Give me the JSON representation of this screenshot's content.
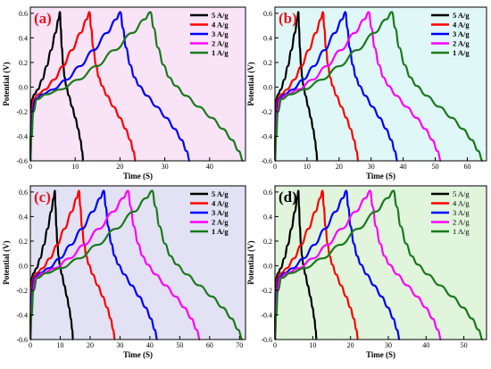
{
  "chart_data": [
    {
      "type": "line",
      "panel_label": "(a)",
      "background": "#f8e4f6",
      "label_color": "#e8141c",
      "title": "",
      "xlabel": "Time (S)",
      "ylabel": "Potential (V)",
      "xlim": [
        0,
        48
      ],
      "ylim": [
        -0.6,
        0.65
      ],
      "xticks": [
        "0",
        "10",
        "20",
        "30",
        "40"
      ],
      "yticks": [
        "-0.6",
        "-0.4",
        "-0.2",
        "0.0",
        "0.2",
        "0.4",
        "0.6"
      ],
      "grid": false,
      "legend_position": "top-right",
      "series": [
        {
          "name": "5 A/g",
          "color": "#000000",
          "charge_end": 6.6,
          "discharge_end": 11.8
        },
        {
          "name": "4 A/g",
          "color": "#ff0000",
          "charge_end": 13.2,
          "discharge_end": 23.5
        },
        {
          "name": "3 A/g",
          "color": "#0000ff",
          "charge_end": 20.1,
          "discharge_end": 35.6
        },
        {
          "name": "2 A/g",
          "color": "#ff00ff",
          "charge_end": 0,
          "discharge_end": 0
        },
        {
          "name": "1 A/g",
          "color": "#1a7a1a",
          "charge_end": 26.8,
          "discharge_end": 47.5
        }
      ]
    },
    {
      "type": "line",
      "panel_label": "(b)",
      "background": "#e0f7f7",
      "label_color": "#e8141c",
      "title": "",
      "xlabel": "Time (S)",
      "ylabel": "Potential (V)",
      "xlim": [
        0,
        66
      ],
      "ylim": [
        -0.6,
        0.65
      ],
      "xticks": [
        "0",
        "10",
        "20",
        "30",
        "40",
        "50",
        "60"
      ],
      "yticks": [
        "-0.6",
        "-0.4",
        "-0.2",
        "0.0",
        "0.2",
        "0.4",
        "0.6"
      ],
      "grid": false,
      "legend_position": "top-right",
      "series": [
        {
          "name": "5 A/g",
          "color": "#000000",
          "charge_end": 7.3,
          "discharge_end": 13.2
        },
        {
          "name": "4 A/g",
          "color": "#ff0000",
          "charge_end": 15.0,
          "discharge_end": 26.0
        },
        {
          "name": "3 A/g",
          "color": "#0000ff",
          "charge_end": 22.0,
          "discharge_end": 38.2
        },
        {
          "name": "2 A/g",
          "color": "#ff00ff",
          "charge_end": 29.3,
          "discharge_end": 51.8
        },
        {
          "name": "1 A/g",
          "color": "#1a7a1a",
          "charge_end": 36.5,
          "discharge_end": 64.8
        }
      ]
    },
    {
      "type": "line",
      "panel_label": "(c)",
      "background": "#e2e2f4",
      "label_color": "#e8141c",
      "title": "",
      "xlabel": "Time (S)",
      "ylabel": "Potential (V)",
      "xlim": [
        0,
        72
      ],
      "ylim": [
        -0.6,
        0.65
      ],
      "xticks": [
        "0",
        "10",
        "20",
        "30",
        "40",
        "50",
        "60",
        "70"
      ],
      "yticks": [
        "-0.6",
        "-0.4",
        "-0.2",
        "0.0",
        "0.2",
        "0.4",
        "0.6"
      ],
      "grid": false,
      "legend_position": "top-right",
      "series": [
        {
          "name": "5 A/g",
          "color": "#000000",
          "charge_end": 8.2,
          "discharge_end": 14.3
        },
        {
          "name": "4 A/g",
          "color": "#ff0000",
          "charge_end": 16.3,
          "discharge_end": 28.3
        },
        {
          "name": "3 A/g",
          "color": "#0000ff",
          "charge_end": 24.6,
          "discharge_end": 42.5
        },
        {
          "name": "2 A/g",
          "color": "#ff00ff",
          "charge_end": 32.7,
          "discharge_end": 56.8
        },
        {
          "name": "1 A/g",
          "color": "#1a7a1a",
          "charge_end": 40.8,
          "discharge_end": 71.0
        }
      ]
    },
    {
      "type": "line",
      "panel_label": "(d)",
      "background": "#e0f5dc",
      "label_color": "#000000",
      "title": "",
      "xlabel": "Time (S)",
      "ylabel": "Potential (V)",
      "xlim": [
        0,
        56
      ],
      "ylim": [
        -0.6,
        0.65
      ],
      "xticks": [
        "0",
        "10",
        "20",
        "30",
        "40",
        "50"
      ],
      "yticks": [
        "-0.6",
        "-0.4",
        "-0.2",
        "0.0",
        "0.2",
        "0.4",
        "0.6"
      ],
      "grid": false,
      "legend_position": "top-right",
      "series": [
        {
          "name": "5 A/g",
          "color": "#000000",
          "charge_end": 6.2,
          "discharge_end": 11.0
        },
        {
          "name": "4 A/g",
          "color": "#ff0000",
          "charge_end": 12.6,
          "discharge_end": 22.0
        },
        {
          "name": "3 A/g",
          "color": "#0000ff",
          "charge_end": 18.9,
          "discharge_end": 33.0
        },
        {
          "name": "2 A/g",
          "color": "#ff00ff",
          "charge_end": 25.2,
          "discharge_end": 44.0
        },
        {
          "name": "1 A/g",
          "color": "#1a7a1a",
          "charge_end": 31.4,
          "discharge_end": 55.0
        }
      ]
    }
  ]
}
